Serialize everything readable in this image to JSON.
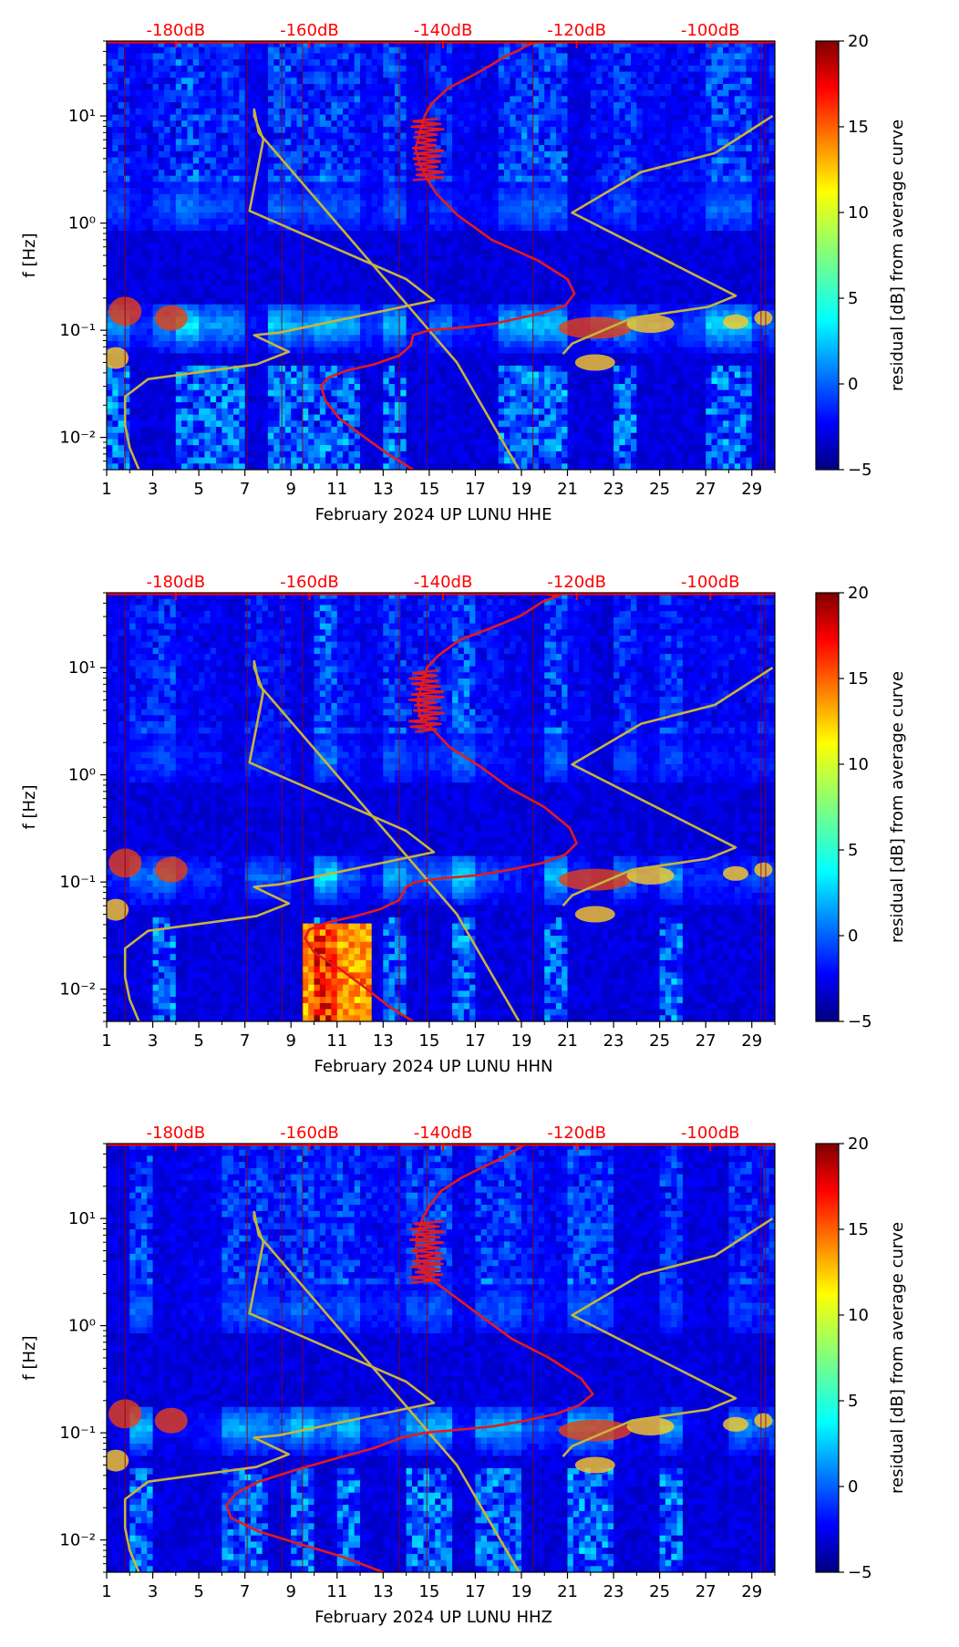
{
  "colors": {
    "red_curve": "#e41a1c",
    "gold_curve": "#c8b43a",
    "top_labels": "#ff0000",
    "colormap": "jet"
  },
  "chart_data": [
    {
      "type": "heatmap",
      "title": "",
      "xlabel": "February 2024 UP LUNU  HHE",
      "ylabel": "f [Hz]",
      "colorbar_label": "residual [dB] from average curve",
      "colorbar_ticks": [
        "−5",
        "0",
        "5",
        "10",
        "15",
        "20"
      ],
      "colorbar_range": [
        -5,
        20
      ],
      "x_ticks": [
        "1",
        "3",
        "5",
        "7",
        "9",
        "11",
        "13",
        "15",
        "17",
        "19",
        "21",
        "23",
        "25",
        "27",
        "29"
      ],
      "x_range": [
        1,
        30
      ],
      "y_ticks": [
        "10⁻²",
        "10⁻¹",
        "10⁰",
        "10¹"
      ],
      "y_range_hz": [
        0.005,
        50
      ],
      "top_axis_labels": [
        "-180dB",
        "-160dB",
        "-140dB",
        "-120dB",
        "-100dB"
      ],
      "top_axis_db": [
        -180,
        -160,
        -140,
        -120,
        -100
      ],
      "top_axis_x_days": [
        4,
        9.8,
        15.6,
        21.4,
        27.2
      ],
      "red_curve_x_days": [
        14.3,
        13.2,
        12.2,
        11.1,
        10.5,
        10.3,
        10.6,
        11.4,
        12.6,
        13.7,
        14.2,
        14.3,
        15.0,
        16.6,
        17.8,
        18.8,
        19.9,
        20.9,
        21.3,
        21.0,
        19.7,
        17.7,
        16.2,
        15.3,
        14.9,
        14.6,
        14.4,
        14.6,
        14.8,
        15.1,
        15.8,
        16.9,
        17.7,
        18.3,
        18.9,
        19.2,
        19.5,
        19.9
      ],
      "red_curve_f_hz": [
        0.005,
        0.007,
        0.01,
        0.015,
        0.022,
        0.03,
        0.036,
        0.042,
        0.048,
        0.058,
        0.072,
        0.09,
        0.1,
        0.107,
        0.115,
        0.128,
        0.145,
        0.17,
        0.22,
        0.3,
        0.45,
        0.7,
        1.2,
        1.9,
        2.6,
        3.5,
        5,
        7,
        10,
        13,
        18,
        24,
        30,
        36,
        41,
        45,
        48,
        50
      ],
      "gold_curve_x_days": [
        2.4,
        2.0,
        1.8,
        1.8,
        2.8,
        7.5,
        8.9,
        7.4,
        8.5,
        15.2,
        14.0,
        7.2,
        7.8,
        7.4,
        7.4,
        7.6,
        16.2,
        18.9
      ],
      "gold_curve_f_hz": [
        0.005,
        0.008,
        0.013,
        0.024,
        0.035,
        0.048,
        0.063,
        0.09,
        0.095,
        0.19,
        0.3,
        1.3,
        6.0,
        10.0,
        11.5,
        7.0,
        0.05,
        0.005
      ],
      "gold_curve2_x_days": [
        29.9,
        27.4,
        24.2,
        21.2,
        28.3,
        27.1,
        23.8,
        21.2,
        20.8
      ],
      "gold_curve2_f_hz": [
        10.0,
        4.5,
        3.0,
        1.25,
        0.21,
        0.165,
        0.13,
        0.075,
        0.06
      ]
    },
    {
      "type": "heatmap",
      "title": "",
      "xlabel": "February 2024 UP LUNU  HHN",
      "ylabel": "f [Hz]",
      "colorbar_label": "residual [dB] from average curve",
      "colorbar_ticks": [
        "−5",
        "0",
        "5",
        "10",
        "15",
        "20"
      ],
      "colorbar_range": [
        -5,
        20
      ],
      "x_ticks": [
        "1",
        "3",
        "5",
        "7",
        "9",
        "11",
        "13",
        "15",
        "17",
        "19",
        "21",
        "23",
        "25",
        "27",
        "29"
      ],
      "x_range": [
        1,
        30
      ],
      "y_ticks": [
        "10⁻²",
        "10⁻¹",
        "10⁰",
        "10¹"
      ],
      "y_range_hz": [
        0.005,
        50
      ],
      "top_axis_labels": [
        "-180dB",
        "-160dB",
        "-140dB",
        "-120dB",
        "-100dB"
      ],
      "top_axis_db": [
        -180,
        -160,
        -140,
        -120,
        -100
      ],
      "top_axis_x_days": [
        4,
        9.8,
        15.6,
        21.4,
        27.2
      ],
      "red_curve_x_days": [
        14.3,
        13.2,
        12.3,
        11.2,
        10.0,
        9.6,
        9.8,
        10.6,
        11.8,
        12.9,
        13.7,
        14.0,
        14.4,
        15.5,
        17.0,
        18.5,
        19.9,
        20.9,
        21.4,
        21.1,
        20.0,
        18.5,
        17.2,
        15.9,
        15.2,
        14.6,
        14.5,
        14.7,
        14.9,
        15.4,
        16.3,
        17.8,
        18.9,
        19.5,
        19.9,
        20.6,
        19.6
      ],
      "red_curve_f_hz": [
        0.005,
        0.007,
        0.01,
        0.015,
        0.022,
        0.03,
        0.036,
        0.042,
        0.048,
        0.056,
        0.068,
        0.09,
        0.1,
        0.108,
        0.115,
        0.13,
        0.15,
        0.18,
        0.23,
        0.32,
        0.5,
        0.75,
        1.2,
        1.8,
        2.6,
        3.5,
        5,
        7,
        10,
        13,
        18,
        24,
        30,
        36,
        41,
        47,
        50
      ],
      "gold_curve_x_days": [
        2.4,
        2.0,
        1.8,
        1.8,
        2.8,
        7.5,
        8.9,
        7.4,
        8.5,
        15.2,
        14.0,
        7.2,
        7.8,
        7.4,
        7.4,
        7.6,
        16.2,
        18.9
      ],
      "gold_curve_f_hz": [
        0.005,
        0.008,
        0.013,
        0.024,
        0.035,
        0.048,
        0.063,
        0.09,
        0.095,
        0.19,
        0.3,
        1.3,
        6.0,
        10.0,
        11.5,
        7.0,
        0.05,
        0.005
      ],
      "gold_curve2_x_days": [
        29.9,
        27.4,
        24.2,
        21.2,
        28.3,
        27.1,
        23.8,
        21.2,
        20.8
      ],
      "gold_curve2_f_hz": [
        10.0,
        4.5,
        3.0,
        1.25,
        0.21,
        0.165,
        0.13,
        0.075,
        0.06
      ]
    },
    {
      "type": "heatmap",
      "title": "",
      "xlabel": "February 2024 UP LUNU  HHZ",
      "ylabel": "f [Hz]",
      "colorbar_label": "residual [dB] from average curve",
      "colorbar_ticks": [
        "−5",
        "0",
        "5",
        "10",
        "15",
        "20"
      ],
      "colorbar_range": [
        -5,
        20
      ],
      "x_ticks": [
        "1",
        "3",
        "5",
        "7",
        "9",
        "11",
        "13",
        "15",
        "17",
        "19",
        "21",
        "23",
        "25",
        "27",
        "29"
      ],
      "x_range": [
        1,
        30
      ],
      "y_ticks": [
        "10⁻²",
        "10⁻¹",
        "10⁰",
        "10¹"
      ],
      "y_range_hz": [
        0.005,
        50
      ],
      "top_axis_labels": [
        "-180dB",
        "-160dB",
        "-140dB",
        "-120dB",
        "-100dB"
      ],
      "top_axis_db": [
        -180,
        -160,
        -140,
        -120,
        -100
      ],
      "top_axis_x_days": [
        4,
        9.8,
        15.6,
        21.4,
        27.2
      ],
      "red_curve_x_days": [
        13.0,
        11.2,
        9.5,
        7.6,
        6.4,
        6.2,
        6.6,
        7.6,
        9.2,
        11.0,
        12.6,
        13.8,
        14.8,
        16.3,
        17.8,
        19.2,
        20.5,
        21.5,
        22.1,
        21.6,
        20.2,
        18.6,
        17.3,
        16.2,
        15.2,
        14.6,
        14.4,
        14.5,
        14.7,
        15.0,
        15.5,
        16.4,
        17.3,
        18.2,
        18.8,
        19.2
      ],
      "red_curve_f_hz": [
        0.005,
        0.007,
        0.009,
        0.012,
        0.016,
        0.021,
        0.027,
        0.035,
        0.045,
        0.058,
        0.072,
        0.09,
        0.1,
        0.107,
        0.115,
        0.13,
        0.15,
        0.18,
        0.23,
        0.32,
        0.5,
        0.75,
        1.2,
        1.8,
        2.6,
        3.5,
        5,
        7,
        10,
        13,
        18,
        24,
        30,
        37,
        44,
        50
      ],
      "gold_curve_x_days": [
        2.4,
        2.0,
        1.8,
        1.8,
        2.8,
        7.5,
        8.9,
        7.4,
        8.5,
        15.2,
        14.0,
        7.2,
        7.8,
        7.4,
        7.4,
        7.6,
        16.2,
        18.9
      ],
      "gold_curve_f_hz": [
        0.005,
        0.008,
        0.013,
        0.024,
        0.035,
        0.048,
        0.063,
        0.09,
        0.095,
        0.19,
        0.3,
        1.3,
        6.0,
        10.0,
        11.5,
        7.0,
        0.05,
        0.005
      ],
      "gold_curve2_x_days": [
        29.9,
        27.4,
        24.2,
        21.2,
        28.3,
        27.1,
        23.8,
        21.2,
        20.8
      ],
      "gold_curve2_f_hz": [
        10.0,
        4.5,
        3.0,
        1.25,
        0.21,
        0.165,
        0.13,
        0.075,
        0.06
      ]
    }
  ]
}
